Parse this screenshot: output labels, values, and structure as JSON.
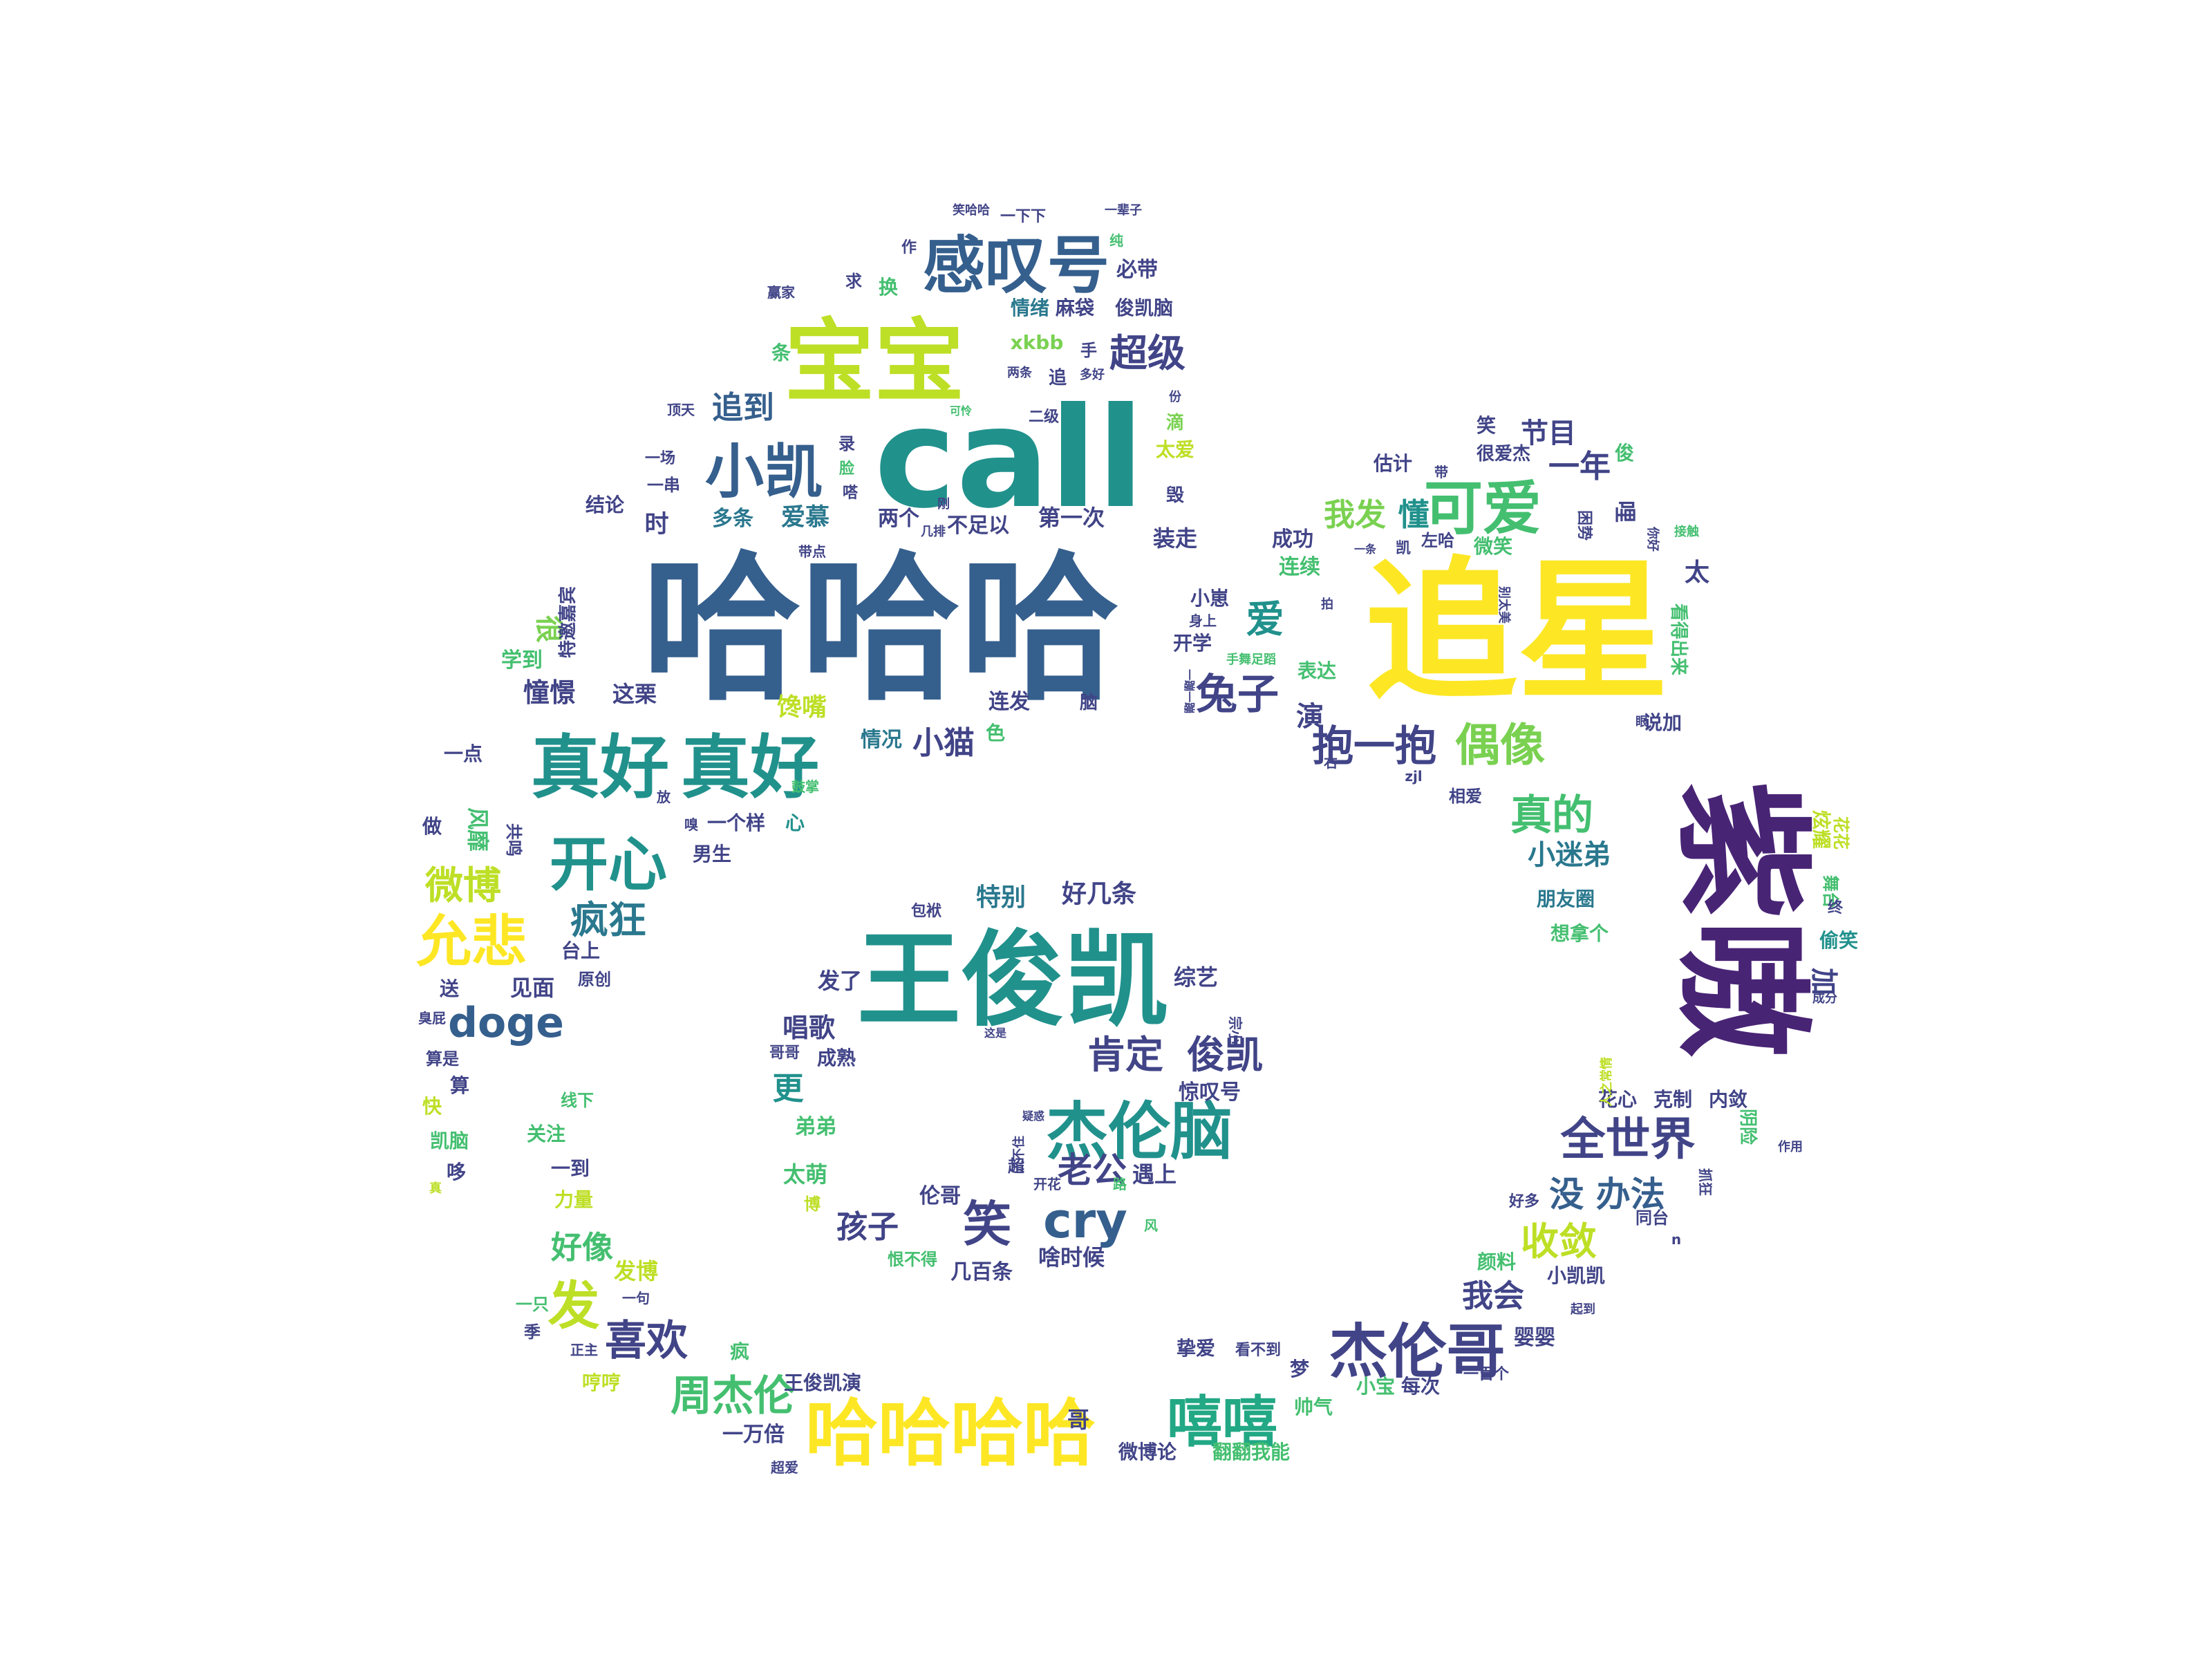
{
  "palette": {
    "dark_purple": "#482475",
    "indigo": "#414487",
    "steel_blue": "#355f8d",
    "blue_teal": "#2a788e",
    "teal": "#21918c",
    "green_teal": "#22a884",
    "green": "#44bf70",
    "light_green": "#7ad151",
    "yellow_green": "#bddf26",
    "yellow": "#fde725"
  },
  "words": [
    {
      "text": "哈哈哈",
      "color": "steel_blue"
    },
    {
      "text": "追星",
      "color": "yellow"
    },
    {
      "text": "call",
      "color": "teal"
    },
    {
      "text": "紫嗷",
      "color": "dark_purple"
    },
    {
      "text": "王俊凯",
      "color": "teal"
    },
    {
      "text": "宝宝",
      "color": "yellow_green"
    },
    {
      "text": "哈哈哈哈",
      "color": "yellow"
    },
    {
      "text": "真好",
      "color": "teal"
    },
    {
      "text": "真好",
      "color": "teal"
    },
    {
      "text": "感叹号",
      "color": "steel_blue"
    },
    {
      "text": "杰伦脑",
      "color": "teal"
    },
    {
      "text": "杰伦哥",
      "color": "indigo"
    },
    {
      "text": "小凯",
      "color": "steel_blue"
    },
    {
      "text": "开心",
      "color": "teal"
    },
    {
      "text": "可爱",
      "color": "green"
    },
    {
      "text": "允悲",
      "color": "yellow"
    },
    {
      "text": "嘻嘻",
      "color": "green_teal"
    },
    {
      "text": "周杰伦",
      "color": "green"
    },
    {
      "text": "喜欢",
      "color": "indigo"
    },
    {
      "text": "全世界",
      "color": "indigo"
    },
    {
      "text": "偶像",
      "color": "light_green"
    },
    {
      "text": "一抱",
      "color": "indigo"
    },
    {
      "text": "抱",
      "color": "indigo"
    },
    {
      "text": "真的",
      "color": "green"
    },
    {
      "text": "肯定",
      "color": "indigo"
    },
    {
      "text": "俊凯",
      "color": "indigo"
    },
    {
      "text": "doge",
      "color": "steel_blue"
    },
    {
      "text": "笑",
      "color": "indigo"
    },
    {
      "text": "cry",
      "color": "steel_blue"
    },
    {
      "text": "收敛",
      "color": "yellow_green"
    },
    {
      "text": "没 办法",
      "color": "steel_blue"
    },
    {
      "text": "微博",
      "color": "yellow_green"
    },
    {
      "text": "疯狂",
      "color": "blue_teal"
    },
    {
      "text": "兔子",
      "color": "indigo"
    },
    {
      "text": "超级",
      "color": "indigo"
    },
    {
      "text": "追到",
      "color": "steel_blue"
    },
    {
      "text": "我发",
      "color": "light_green"
    },
    {
      "text": "懂",
      "color": "teal"
    },
    {
      "text": "我会",
      "color": "indigo"
    },
    {
      "text": "一年",
      "color": "indigo"
    },
    {
      "text": "节目",
      "color": "indigo"
    },
    {
      "text": "好像",
      "color": "green"
    },
    {
      "text": "老公",
      "color": "indigo"
    },
    {
      "text": "孩子",
      "color": "indigo"
    },
    {
      "text": "小迷弟",
      "color": "blue_teal"
    },
    {
      "text": "爱慕",
      "color": "blue_teal"
    },
    {
      "text": "第一次",
      "color": "indigo"
    },
    {
      "text": "装走",
      "color": "indigo"
    },
    {
      "text": "成功",
      "color": "indigo"
    },
    {
      "text": "连续",
      "color": "green"
    },
    {
      "text": "小猫",
      "color": "indigo"
    },
    {
      "text": "情况",
      "color": "blue_teal"
    },
    {
      "text": "这栗",
      "color": "indigo"
    },
    {
      "text": "憧憬",
      "color": "indigo"
    },
    {
      "text": "学到",
      "color": "green"
    },
    {
      "text": "一点",
      "color": "indigo"
    },
    {
      "text": "两个",
      "color": "indigo"
    },
    {
      "text": "不足以",
      "color": "indigo"
    },
    {
      "text": "多条",
      "color": "blue_teal"
    },
    {
      "text": "时",
      "color": "indigo"
    },
    {
      "text": "结论",
      "color": "indigo"
    },
    {
      "text": "特别",
      "color": "blue_teal"
    },
    {
      "text": "好几条",
      "color": "indigo"
    },
    {
      "text": "唱歌",
      "color": "indigo"
    },
    {
      "text": "发了",
      "color": "indigo"
    },
    {
      "text": "综艺",
      "color": "indigo"
    },
    {
      "text": "更",
      "color": "teal"
    },
    {
      "text": "弟弟",
      "color": "green"
    },
    {
      "text": "太萌",
      "color": "green"
    },
    {
      "text": "伦哥",
      "color": "indigo"
    },
    {
      "text": "几百条",
      "color": "indigo"
    },
    {
      "text": "啥时候",
      "color": "indigo"
    },
    {
      "text": "惊叹号",
      "color": "indigo"
    },
    {
      "text": "遇上",
      "color": "indigo"
    },
    {
      "text": "朋友圈",
      "color": "blue_teal"
    },
    {
      "text": "想拿个",
      "color": "green"
    },
    {
      "text": "偷笑",
      "color": "teal"
    },
    {
      "text": "花心",
      "color": "indigo"
    },
    {
      "text": "克制",
      "color": "indigo"
    },
    {
      "text": "内敛",
      "color": "indigo"
    },
    {
      "text": "同台",
      "color": "indigo"
    },
    {
      "text": "好多",
      "color": "indigo"
    },
    {
      "text": "小凯凯",
      "color": "indigo"
    },
    {
      "text": "颜料",
      "color": "green"
    },
    {
      "text": "婴婴",
      "color": "indigo"
    },
    {
      "text": "小宝",
      "color": "green"
    },
    {
      "text": "每次",
      "color": "indigo"
    },
    {
      "text": "一百个",
      "color": "indigo"
    },
    {
      "text": "梦",
      "color": "indigo"
    },
    {
      "text": "帅气",
      "color": "green"
    },
    {
      "text": "挚爱",
      "color": "indigo"
    },
    {
      "text": "看不到",
      "color": "indigo"
    },
    {
      "text": "微博论",
      "color": "indigo"
    },
    {
      "text": "翻翻我能",
      "color": "green"
    },
    {
      "text": "哥",
      "color": "indigo"
    },
    {
      "text": "一万倍",
      "color": "indigo"
    },
    {
      "text": "王俊凯演",
      "color": "indigo"
    },
    {
      "text": "超爱",
      "color": "indigo"
    },
    {
      "text": "正主",
      "color": "indigo"
    },
    {
      "text": "哼哼",
      "color": "yellow_green"
    },
    {
      "text": "疯",
      "color": "green"
    },
    {
      "text": "发博",
      "color": "yellow_green"
    },
    {
      "text": "一句",
      "color": "indigo"
    },
    {
      "text": "一只",
      "color": "green"
    },
    {
      "text": "季",
      "color": "indigo"
    },
    {
      "text": "发",
      "color": "yellow_green"
    },
    {
      "text": "力量",
      "color": "yellow_green"
    },
    {
      "text": "一到",
      "color": "indigo"
    },
    {
      "text": "关注",
      "color": "green"
    },
    {
      "text": "线下",
      "color": "green"
    },
    {
      "text": "凯脑",
      "color": "green"
    },
    {
      "text": "快",
      "color": "yellow_green"
    },
    {
      "text": "哆",
      "color": "indigo"
    },
    {
      "text": "真",
      "color": "yellow_green"
    },
    {
      "text": "算",
      "color": "indigo"
    },
    {
      "text": "算是",
      "color": "indigo"
    },
    {
      "text": "臭屁",
      "color": "indigo"
    },
    {
      "text": "送",
      "color": "indigo"
    },
    {
      "text": "见面",
      "color": "indigo"
    },
    {
      "text": "原创",
      "color": "indigo"
    },
    {
      "text": "台上",
      "color": "indigo"
    },
    {
      "text": "做",
      "color": "indigo"
    },
    {
      "text": "风靡",
      "color": "green"
    },
    {
      "text": "共鸣",
      "color": "indigo"
    },
    {
      "text": "男生",
      "color": "indigo"
    },
    {
      "text": "一个样",
      "color": "indigo"
    },
    {
      "text": "心",
      "color": "teal"
    },
    {
      "text": "鼓掌",
      "color": "green"
    },
    {
      "text": "放",
      "color": "indigo"
    },
    {
      "text": "嗅",
      "color": "indigo"
    },
    {
      "text": "色",
      "color": "green"
    },
    {
      "text": "连发",
      "color": "indigo"
    },
    {
      "text": "脑",
      "color": "indigo"
    },
    {
      "text": "馋嘴",
      "color": "yellow_green"
    },
    {
      "text": "很",
      "color": "light_green"
    },
    {
      "text": "特邀嘉宾",
      "color": "indigo"
    },
    {
      "text": "一串",
      "color": "indigo"
    },
    {
      "text": "一场",
      "color": "indigo"
    },
    {
      "text": "顶天",
      "color": "indigo"
    },
    {
      "text": "条",
      "color": "green"
    },
    {
      "text": "赢家",
      "color": "indigo"
    },
    {
      "text": "求",
      "color": "indigo"
    },
    {
      "text": "换",
      "color": "green"
    },
    {
      "text": "作",
      "color": "indigo"
    },
    {
      "text": "笑哈哈",
      "color": "indigo"
    },
    {
      "text": "一下下",
      "color": "indigo"
    },
    {
      "text": "一辈子",
      "color": "indigo"
    },
    {
      "text": "纯",
      "color": "green"
    },
    {
      "text": "必带",
      "color": "indigo"
    },
    {
      "text": "情绪",
      "color": "blue_teal"
    },
    {
      "text": "麻袋",
      "color": "indigo"
    },
    {
      "text": "俊凯脑",
      "color": "indigo"
    },
    {
      "text": "xkbb",
      "color": "light_green"
    },
    {
      "text": "手",
      "color": "indigo"
    },
    {
      "text": "两条",
      "color": "indigo"
    },
    {
      "text": "追",
      "color": "indigo"
    },
    {
      "text": "多好",
      "color": "indigo"
    },
    {
      "text": "可怜",
      "color": "green"
    },
    {
      "text": "份",
      "color": "indigo"
    },
    {
      "text": "滴",
      "color": "light_green"
    },
    {
      "text": "二级",
      "color": "indigo"
    },
    {
      "text": "录",
      "color": "indigo"
    },
    {
      "text": "脸",
      "color": "green"
    },
    {
      "text": "嗒",
      "color": "indigo"
    },
    {
      "text": "太爱",
      "color": "yellow_green"
    },
    {
      "text": "毁",
      "color": "indigo"
    },
    {
      "text": "带点",
      "color": "indigo"
    },
    {
      "text": "小崽",
      "color": "indigo"
    },
    {
      "text": "身上",
      "color": "indigo"
    },
    {
      "text": "开学",
      "color": "indigo"
    },
    {
      "text": "表达",
      "color": "green"
    },
    {
      "text": "手舞足蹈",
      "color": "green"
    },
    {
      "text": "一蹦一蹦",
      "color": "indigo"
    },
    {
      "text": "演",
      "color": "indigo"
    },
    {
      "text": "拍",
      "color": "indigo"
    },
    {
      "text": "右",
      "color": "indigo"
    },
    {
      "text": "zjl",
      "color": "indigo"
    },
    {
      "text": "相爱",
      "color": "indigo"
    },
    {
      "text": "说加",
      "color": "indigo"
    },
    {
      "text": "眼",
      "color": "indigo"
    },
    {
      "text": "炫耀",
      "color": "yellow_green"
    },
    {
      "text": "花花",
      "color": "yellow_green"
    },
    {
      "text": "舞台",
      "color": "green"
    },
    {
      "text": "终",
      "color": "indigo"
    },
    {
      "text": "加",
      "color": "indigo"
    },
    {
      "text": "成分",
      "color": "indigo"
    },
    {
      "text": "人之常情",
      "color": "yellow_green"
    },
    {
      "text": "阴险",
      "color": "green"
    },
    {
      "text": "作用",
      "color": "indigo"
    },
    {
      "text": "抓狂",
      "color": "indigo"
    },
    {
      "text": "n",
      "color": "indigo"
    },
    {
      "text": "起到",
      "color": "indigo"
    },
    {
      "text": "笑",
      "color": "indigo"
    },
    {
      "text": "很爱杰",
      "color": "indigo"
    },
    {
      "text": "俊",
      "color": "green"
    },
    {
      "text": "估计",
      "color": "indigo"
    },
    {
      "text": "带",
      "color": "indigo"
    },
    {
      "text": "一条",
      "color": "indigo"
    },
    {
      "text": "凯",
      "color": "indigo"
    },
    {
      "text": "左哈",
      "color": "indigo"
    },
    {
      "text": "微笑",
      "color": "green"
    },
    {
      "text": "哩",
      "color": "indigo"
    },
    {
      "text": "困势",
      "color": "indigo"
    },
    {
      "text": "你好",
      "color": "indigo"
    },
    {
      "text": "接触",
      "color": "green"
    },
    {
      "text": "别太美",
      "color": "indigo"
    },
    {
      "text": "看得出来",
      "color": "green"
    },
    {
      "text": "太",
      "color": "indigo"
    },
    {
      "text": "爱",
      "color": "teal"
    },
    {
      "text": "包袱",
      "color": "indigo"
    },
    {
      "text": "宗小",
      "color": "indigo"
    },
    {
      "text": "这是",
      "color": "indigo"
    },
    {
      "text": "哥哥",
      "color": "indigo"
    },
    {
      "text": "成熟",
      "color": "indigo"
    },
    {
      "text": "疑惑",
      "color": "indigo"
    },
    {
      "text": "流不住",
      "color": "indigo"
    },
    {
      "text": "超",
      "color": "indigo"
    },
    {
      "text": "开花",
      "color": "indigo"
    },
    {
      "text": "路",
      "color": "green"
    },
    {
      "text": "博",
      "color": "yellow_green"
    },
    {
      "text": "恨不得",
      "color": "green"
    },
    {
      "text": "风",
      "color": "green"
    },
    {
      "text": "几排",
      "color": "indigo"
    },
    {
      "text": "刚",
      "color": "indigo"
    }
  ]
}
